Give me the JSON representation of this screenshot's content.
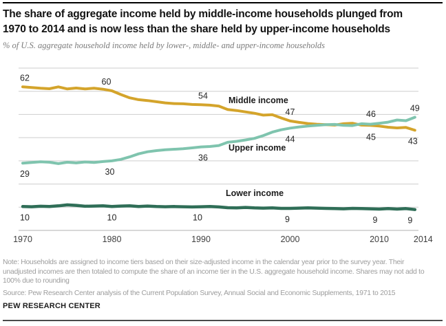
{
  "header": {
    "title_line1": "The share of aggregate income held by middle-income households plunged from",
    "title_line2": "1970 to 2014 and is now less than the share held by upper-income households",
    "subtitle": "% of U.S. aggregate household income held by lower-, middle- and upper-income households"
  },
  "footer": {
    "note_line1": "Note: Households are assigned to income tiers based on their size-adjusted income in the calendar year prior to the survey year. Their",
    "note_line2": "unadjusted incomes are then totaled to compute the share of an income tier in the U.S. aggregate household income. Shares may not add to",
    "note_line3": "100% due to rounding",
    "source": "Source: Pew Research Center analysis of the Current Population Survey, Annual Social and Economic Supplements, 1971 to 2015",
    "brand": "PEW RESEARCH CENTER"
  },
  "chart_data": {
    "type": "line",
    "title": "The share of aggregate income held by middle-income households plunged from 1970 to 2014 and is now less than the share held by upper-income households",
    "ylabel": "% of U.S. aggregate household income",
    "xlim": [
      1970,
      2014
    ],
    "ylim": [
      0,
      70
    ],
    "grid": true,
    "legend": "inline-labels",
    "y_gridlines": [
      70,
      60,
      50,
      40,
      30,
      20,
      10
    ],
    "x_ticks": [
      {
        "year": 1970,
        "label": "1970",
        "dx": 0
      },
      {
        "year": 1980,
        "label": "1980",
        "dx": 0
      },
      {
        "year": 1990,
        "label": "1990",
        "dx": 0
      },
      {
        "year": 2000,
        "label": "2000",
        "dx": 0
      },
      {
        "year": 2010,
        "label": "2010",
        "dx": 0
      },
      {
        "year": 2014,
        "label": "2014",
        "dx": 12
      }
    ],
    "years": [
      1970,
      1971,
      1972,
      1973,
      1974,
      1975,
      1976,
      1977,
      1978,
      1979,
      1980,
      1981,
      1982,
      1983,
      1984,
      1985,
      1986,
      1987,
      1988,
      1989,
      1990,
      1991,
      1992,
      1993,
      1994,
      1995,
      1996,
      1997,
      1998,
      1999,
      2000,
      2001,
      2002,
      2003,
      2004,
      2005,
      2006,
      2007,
      2008,
      2009,
      2010,
      2011,
      2012,
      2013,
      2014
    ],
    "series": [
      {
        "name": "Middle income",
        "color": "#d4a42b",
        "values": [
          61.9,
          61.6,
          61.3,
          61.1,
          61.9,
          61.0,
          61.4,
          61.0,
          61.3,
          60.9,
          60.2,
          58.6,
          57.2,
          56.4,
          56.0,
          55.5,
          55.0,
          54.7,
          54.6,
          54.3,
          54.2,
          54.0,
          53.6,
          52.1,
          51.7,
          51.1,
          50.5,
          49.7,
          49.9,
          48.5,
          47.2,
          46.6,
          46.1,
          45.8,
          45.6,
          45.4,
          46.0,
          46.2,
          45.4,
          45.3,
          45.0,
          44.5,
          44.2,
          44.4,
          43.2
        ]
      },
      {
        "name": "Upper income",
        "color": "#7fc4ae",
        "values": [
          29.0,
          29.3,
          29.6,
          29.4,
          28.8,
          29.4,
          29.1,
          29.5,
          29.3,
          29.7,
          30.0,
          30.6,
          31.7,
          33.0,
          33.9,
          34.4,
          34.8,
          35.0,
          35.2,
          35.6,
          36.0,
          36.2,
          36.6,
          38.0,
          38.4,
          39.0,
          39.7,
          40.9,
          42.4,
          43.4,
          44.1,
          44.6,
          45.0,
          45.3,
          45.6,
          45.7,
          45.3,
          45.2,
          46.0,
          45.8,
          46.2,
          46.7,
          47.6,
          47.3,
          48.8
        ]
      },
      {
        "name": "Lower income",
        "color": "#2f6e57",
        "values": [
          10.3,
          10.2,
          10.4,
          10.3,
          10.6,
          11.0,
          10.8,
          10.4,
          10.5,
          10.6,
          10.3,
          10.5,
          10.6,
          10.3,
          10.5,
          10.3,
          10.2,
          10.3,
          10.2,
          10.1,
          10.2,
          10.3,
          10.1,
          9.8,
          9.7,
          9.9,
          9.7,
          9.6,
          9.7,
          9.5,
          9.5,
          9.6,
          9.7,
          9.6,
          9.5,
          9.4,
          9.3,
          9.5,
          9.4,
          9.3,
          9.2,
          9.4,
          9.2,
          9.4,
          9.0
        ]
      }
    ],
    "point_labels": [
      {
        "series": 0,
        "year": 1970,
        "text": "62",
        "side": "above",
        "dx": 3
      },
      {
        "series": 0,
        "year": 1980,
        "text": "60",
        "side": "above",
        "dx": -8
      },
      {
        "series": 0,
        "year": 1990,
        "text": "54",
        "side": "above",
        "dx": 3
      },
      {
        "series": 0,
        "year": 2000,
        "text": "47",
        "side": "above",
        "dx": 0
      },
      {
        "series": 0,
        "year": 2010,
        "text": "45",
        "side": "below",
        "dx": -12
      },
      {
        "series": 0,
        "year": 2014,
        "text": "43",
        "side": "below",
        "dx": -3
      },
      {
        "series": 1,
        "year": 1970,
        "text": "29",
        "side": "below",
        "dx": 3
      },
      {
        "series": 1,
        "year": 1980,
        "text": "30",
        "side": "below",
        "dx": -3
      },
      {
        "series": 1,
        "year": 1990,
        "text": "36",
        "side": "below",
        "dx": 3
      },
      {
        "series": 1,
        "year": 2000,
        "text": "44",
        "side": "below",
        "dx": 0
      },
      {
        "series": 1,
        "year": 2010,
        "text": "46",
        "side": "above",
        "dx": -12
      },
      {
        "series": 1,
        "year": 2014,
        "text": "49",
        "side": "above",
        "dx": 0
      },
      {
        "series": 2,
        "year": 1970,
        "text": "10",
        "side": "below",
        "dx": 3
      },
      {
        "series": 2,
        "year": 1980,
        "text": "10",
        "side": "below",
        "dx": 0
      },
      {
        "series": 2,
        "year": 1990,
        "text": "10",
        "side": "below",
        "dx": -5
      },
      {
        "series": 2,
        "year": 2000,
        "text": "9",
        "side": "below",
        "dx": -4
      },
      {
        "series": 2,
        "year": 2010,
        "text": "9",
        "side": "below",
        "dx": -6
      },
      {
        "series": 2,
        "year": 2014,
        "text": "9",
        "side": "below",
        "dx": -7
      }
    ],
    "colors": {
      "gridline": "#cdcdcd",
      "axis": "#b2b2b2"
    }
  }
}
